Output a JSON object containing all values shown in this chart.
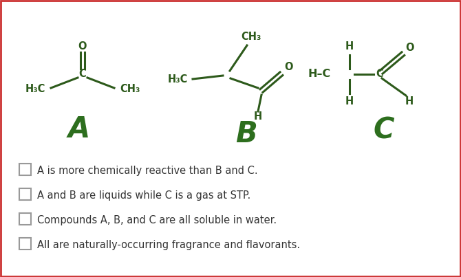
{
  "bg_color": "#ffffff",
  "border_color": "#cc3333",
  "chem_color": "#2d5a1b",
  "label_color": "#2d6e1e",
  "text_color": "#333333",
  "checkbox_color": "#888888",
  "options": [
    "A is more chemically reactive than B and C.",
    "A and B are liquids while C is a gas at STP.",
    "Compounds A, B, and C are all soluble in water.",
    "All are naturally-occurring fragrance and flavorants."
  ],
  "figsize": [
    6.7,
    4.03
  ],
  "dpi": 100
}
